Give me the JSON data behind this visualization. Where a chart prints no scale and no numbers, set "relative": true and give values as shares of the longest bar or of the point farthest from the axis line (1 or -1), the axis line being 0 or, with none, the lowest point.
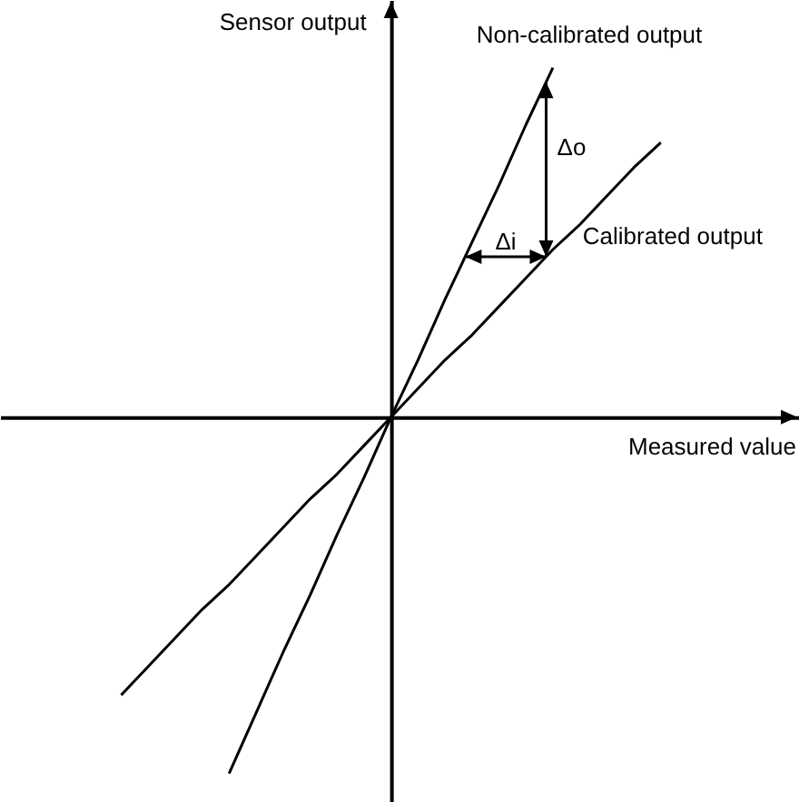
{
  "chart_data": {
    "type": "line",
    "relative": true,
    "xlabel": "Measured value",
    "ylabel": "Sensor output",
    "marker": "none",
    "categories": [
      null,
      null,
      null,
      null,
      null,
      null,
      null,
      null,
      null,
      null,
      null,
      null,
      null,
      null,
      null,
      null,
      null,
      null,
      null,
      null,
      null
    ],
    "series": [
      {
        "name": "Non-calibrated output",
        "color": "#000000",
        "values": [
          null,
          null,
          null,
          null,
          -1,
          -0.83,
          -0.66,
          -0.5,
          -0.33,
          -0.17,
          0,
          0.16,
          0.33,
          0.49,
          0.65,
          0.82,
          0.98,
          null,
          null,
          null,
          null
        ]
      },
      {
        "name": "Calibrated output",
        "color": "#000000",
        "values": [
          -0.78,
          -0.7,
          -0.62,
          -0.54,
          -0.47,
          -0.39,
          -0.31,
          -0.23,
          -0.16,
          -0.08,
          0,
          0.08,
          0.16,
          0.23,
          0.31,
          0.39,
          0.47,
          0.54,
          0.62,
          0.7,
          0.77
        ]
      }
    ],
    "annotations": [
      "Δo",
      "Δi"
    ]
  }
}
